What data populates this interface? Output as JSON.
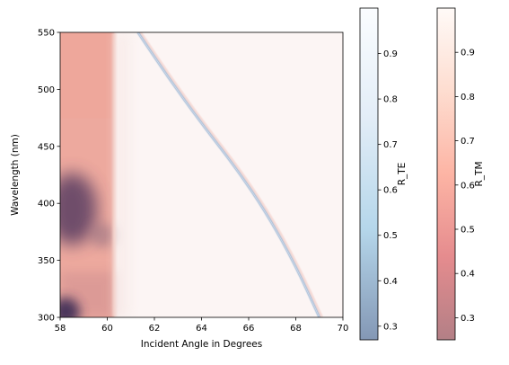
{
  "chart_data": {
    "type": "heatmap",
    "title": "",
    "xlabel": "Incident Angle in Degrees",
    "ylabel": "Wavelength (nm)",
    "xlim": [
      58,
      70
    ],
    "ylim": [
      300,
      550
    ],
    "xticks": [
      58,
      60,
      62,
      64,
      66,
      68,
      70
    ],
    "yticks": [
      300,
      350,
      400,
      450,
      500,
      550
    ],
    "layers": [
      {
        "name": "R_TE",
        "colormap": "Blues_r",
        "colormap_colors": [
          "#08306b",
          "#6baed6",
          "#c6dbef",
          "#f7fbff"
        ],
        "alpha": 0.5,
        "clim": [
          0.27,
          1.0
        ],
        "colorbar_ticks": [
          0.3,
          0.4,
          0.5,
          0.6,
          0.7,
          0.8,
          0.9
        ]
      },
      {
        "name": "R_TM",
        "colormap": "Reds_r",
        "colormap_colors": [
          "#67000d",
          "#cb181d",
          "#fb6a4a",
          "#fcbba1",
          "#fff5f0"
        ],
        "alpha": 0.5,
        "clim": [
          0.25,
          1.0
        ],
        "colorbar_ticks": [
          0.3,
          0.4,
          0.5,
          0.6,
          0.7,
          0.8,
          0.9
        ]
      }
    ],
    "features": {
      "critical_angle_deg": 60.3,
      "te_resonance_curve": [
        {
          "angle": 61.3,
          "wavelength": 550
        },
        {
          "angle": 62.6,
          "wavelength": 510
        },
        {
          "angle": 64.0,
          "wavelength": 470
        },
        {
          "angle": 65.5,
          "wavelength": 430
        },
        {
          "angle": 66.8,
          "wavelength": 390
        },
        {
          "angle": 68.0,
          "wavelength": 345
        },
        {
          "angle": 69.0,
          "wavelength": 300
        }
      ],
      "tm_minimum_region": {
        "angle": 58.5,
        "wavelength": 395,
        "reflectance": 0.3
      },
      "tm_minimum_region_low": {
        "angle": 58.0,
        "wavelength": 300,
        "reflectance": 0.3
      }
    }
  }
}
